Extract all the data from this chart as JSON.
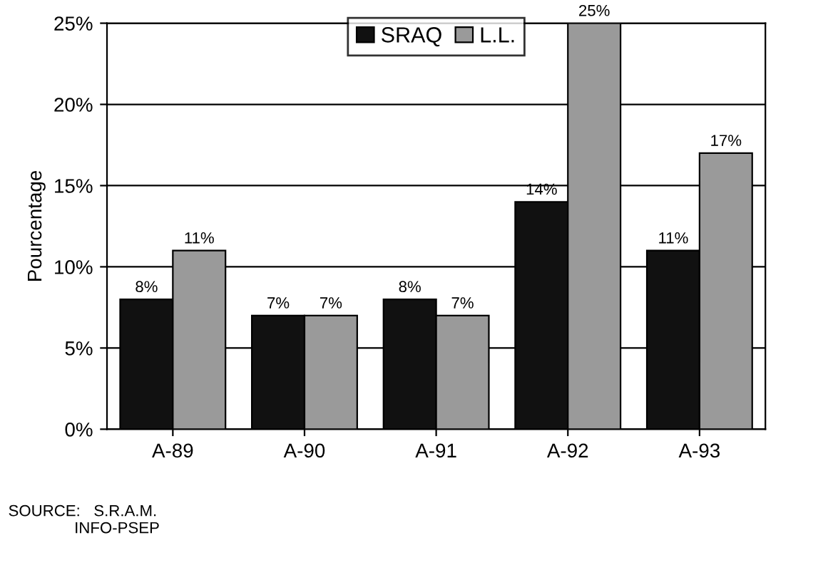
{
  "chart_data": {
    "type": "bar",
    "ylabel": "Pourcentage",
    "categories": [
      "A-89",
      "A-90",
      "A-91",
      "A-92",
      "A-93"
    ],
    "series": [
      {
        "name": "SRAQ",
        "color": "#111111",
        "values": [
          8,
          7,
          8,
          14,
          11
        ],
        "value_labels": [
          "8%",
          "7%",
          "8%",
          "14%",
          "11%"
        ]
      },
      {
        "name": "L.L.",
        "color": "#9a9a9a",
        "values": [
          11,
          7,
          7,
          25,
          17
        ],
        "value_labels": [
          "11%",
          "7%",
          "7%",
          "25%",
          "17%"
        ]
      }
    ],
    "ylim": [
      0,
      25
    ],
    "yticks": [
      {
        "value": 0,
        "label": "0%"
      },
      {
        "value": 5,
        "label": "5%"
      },
      {
        "value": 10,
        "label": "10%"
      },
      {
        "value": 15,
        "label": "15%"
      },
      {
        "value": 20,
        "label": "20%"
      },
      {
        "value": 25,
        "label": "25%"
      }
    ],
    "grid": "y",
    "legend": "top",
    "annotations": [
      "SOURCE:   S.R.A.M.\n               INFO-PSEP"
    ]
  }
}
